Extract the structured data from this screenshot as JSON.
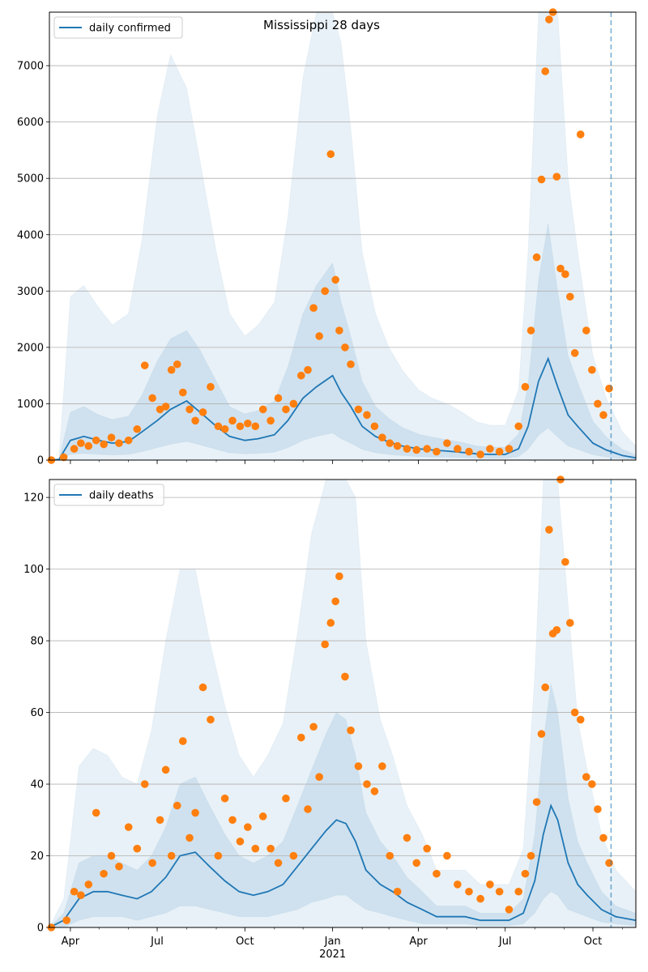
{
  "chart_data": [
    {
      "type": "line",
      "title": "Mississippi 28 days",
      "xlabel": "",
      "ylabel": "",
      "ylim": [
        0,
        7950
      ],
      "yticks": [
        0,
        1000,
        2000,
        3000,
        4000,
        5000,
        6000,
        7000
      ],
      "xlim": [
        "2020-03-10",
        "2021-11-15"
      ],
      "xticks": [
        {
          "date": "2020-04-01",
          "label": "Apr"
        },
        {
          "date": "2020-07-01",
          "label": "Jul"
        },
        {
          "date": "2020-10-01",
          "label": "Oct"
        },
        {
          "date": "2021-01-01",
          "label": "Jan"
        },
        {
          "date": "2021-04-01",
          "label": "Apr"
        },
        {
          "date": "2021-07-01",
          "label": "Jul"
        },
        {
          "date": "2021-10-01",
          "label": "Oct"
        }
      ],
      "forecast_date": "2021-10-20",
      "grid": "horizontal",
      "legend": {
        "position": "top-left",
        "entries": [
          "daily confirmed"
        ]
      },
      "series": [
        {
          "name": "daily confirmed",
          "color": "#1f77b4",
          "x": [
            "2020-03-10",
            "2020-03-20",
            "2020-04-01",
            "2020-04-15",
            "2020-05-01",
            "2020-05-15",
            "2020-06-01",
            "2020-06-15",
            "2020-07-01",
            "2020-07-15",
            "2020-08-01",
            "2020-08-15",
            "2020-09-01",
            "2020-09-15",
            "2020-10-01",
            "2020-10-15",
            "2020-11-01",
            "2020-11-15",
            "2020-12-01",
            "2020-12-15",
            "2021-01-01",
            "2021-01-10",
            "2021-01-20",
            "2021-02-01",
            "2021-02-15",
            "2021-03-01",
            "2021-03-15",
            "2021-04-01",
            "2021-04-15",
            "2021-05-01",
            "2021-05-15",
            "2021-06-01",
            "2021-06-15",
            "2021-07-01",
            "2021-07-15",
            "2021-07-25",
            "2021-08-05",
            "2021-08-15",
            "2021-08-25",
            "2021-09-05",
            "2021-09-15",
            "2021-10-01",
            "2021-10-15",
            "2021-11-01",
            "2021-11-15"
          ],
          "y": [
            0,
            10,
            350,
            420,
            350,
            300,
            330,
            500,
            700,
            900,
            1050,
            850,
            600,
            420,
            350,
            380,
            450,
            700,
            1100,
            1300,
            1500,
            1200,
            950,
            600,
            420,
            320,
            250,
            200,
            180,
            160,
            140,
            110,
            100,
            100,
            200,
            600,
            1400,
            1800,
            1300,
            800,
            600,
            300,
            180,
            80,
            40
          ],
          "lower": [
            0,
            0,
            100,
            120,
            100,
            90,
            100,
            150,
            220,
            280,
            330,
            270,
            190,
            130,
            110,
            120,
            140,
            220,
            350,
            420,
            480,
            380,
            300,
            190,
            130,
            100,
            80,
            60,
            55,
            50,
            45,
            35,
            30,
            30,
            60,
            190,
            440,
            570,
            410,
            250,
            190,
            95,
            55,
            25,
            10
          ],
          "upper": [
            0,
            30,
            2900,
            3100,
            2700,
            2400,
            2600,
            3900,
            6100,
            7200,
            6600,
            5300,
            3700,
            2600,
            2200,
            2400,
            2800,
            4300,
            6800,
            8000,
            8000,
            7400,
            5900,
            3700,
            2600,
            2000,
            1600,
            1250,
            1100,
            1000,
            870,
            680,
            620,
            620,
            1250,
            3700,
            7950,
            7950,
            7950,
            5000,
            3700,
            1850,
            1100,
            500,
            250
          ],
          "mid_upper": [
            0,
            15,
            850,
            950,
            800,
            720,
            780,
            1150,
            1750,
            2150,
            2300,
            1950,
            1400,
            950,
            820,
            880,
            1050,
            1650,
            2600,
            3100,
            3500,
            2800,
            2200,
            1400,
            950,
            740,
            580,
            460,
            410,
            360,
            320,
            250,
            230,
            230,
            460,
            1350,
            3200,
            4200,
            3000,
            1850,
            1380,
            690,
            410,
            190,
            90
          ]
        }
      ],
      "points": {
        "color": "#ff7f0e",
        "x": [
          "2020-03-12",
          "2020-03-25",
          "2020-04-05",
          "2020-04-12",
          "2020-04-20",
          "2020-04-28",
          "2020-05-06",
          "2020-05-14",
          "2020-05-22",
          "2020-06-01",
          "2020-06-10",
          "2020-06-18",
          "2020-06-26",
          "2020-07-04",
          "2020-07-10",
          "2020-07-16",
          "2020-07-22",
          "2020-07-28",
          "2020-08-04",
          "2020-08-10",
          "2020-08-18",
          "2020-08-26",
          "2020-09-03",
          "2020-09-10",
          "2020-09-18",
          "2020-09-26",
          "2020-10-04",
          "2020-10-12",
          "2020-10-20",
          "2020-10-28",
          "2020-11-05",
          "2020-11-13",
          "2020-11-21",
          "2020-11-29",
          "2020-12-06",
          "2020-12-12",
          "2020-12-18",
          "2020-12-24",
          "2020-12-30",
          "2021-01-04",
          "2021-01-08",
          "2021-01-14",
          "2021-01-20",
          "2021-01-28",
          "2021-02-06",
          "2021-02-14",
          "2021-02-22",
          "2021-03-02",
          "2021-03-10",
          "2021-03-20",
          "2021-03-30",
          "2021-04-10",
          "2021-04-20",
          "2021-05-01",
          "2021-05-12",
          "2021-05-24",
          "2021-06-05",
          "2021-06-15",
          "2021-06-25",
          "2021-07-05",
          "2021-07-15",
          "2021-07-22",
          "2021-07-28",
          "2021-08-03",
          "2021-08-08",
          "2021-08-12",
          "2021-08-16",
          "2021-08-20",
          "2021-08-24",
          "2021-08-28",
          "2021-09-02",
          "2021-09-07",
          "2021-09-12",
          "2021-09-18",
          "2021-09-24",
          "2021-09-30",
          "2021-10-06",
          "2021-10-12",
          "2021-10-18"
        ],
        "y": [
          0,
          50,
          200,
          300,
          250,
          350,
          280,
          400,
          300,
          350,
          550,
          1680,
          1100,
          900,
          950,
          1600,
          1700,
          1200,
          900,
          700,
          850,
          1300,
          600,
          550,
          700,
          600,
          650,
          600,
          900,
          700,
          1100,
          900,
          1000,
          1500,
          1600,
          2700,
          2200,
          3000,
          5430,
          3200,
          2300,
          2000,
          1700,
          900,
          800,
          600,
          400,
          300,
          250,
          200,
          180,
          200,
          150,
          300,
          200,
          150,
          100,
          200,
          150,
          200,
          600,
          1300,
          2300,
          3600,
          4980,
          6900,
          7820,
          7950,
          5030,
          3400,
          3300,
          2900,
          1900,
          5780,
          2300,
          1600,
          1000,
          800,
          1270
        ]
      }
    },
    {
      "type": "line",
      "title": "",
      "xlabel": "2021",
      "ylabel": "",
      "ylim": [
        0,
        125
      ],
      "yticks": [
        0,
        20,
        40,
        60,
        80,
        100,
        120
      ],
      "xlim": [
        "2020-03-10",
        "2021-11-15"
      ],
      "xticks": [
        {
          "date": "2020-04-01",
          "label": "Apr"
        },
        {
          "date": "2020-07-01",
          "label": "Jul"
        },
        {
          "date": "2020-10-01",
          "label": "Oct"
        },
        {
          "date": "2021-01-01",
          "label": "Jan"
        },
        {
          "date": "2021-04-01",
          "label": "Apr"
        },
        {
          "date": "2021-07-01",
          "label": "Jul"
        },
        {
          "date": "2021-10-01",
          "label": "Oct"
        }
      ],
      "year_label": "2021",
      "forecast_date": "2021-10-20",
      "grid": "horizontal",
      "legend": {
        "position": "top-left",
        "entries": [
          "daily deaths"
        ]
      },
      "series": [
        {
          "name": "daily deaths",
          "color": "#1f77b4",
          "x": [
            "2020-03-10",
            "2020-03-25",
            "2020-04-10",
            "2020-04-25",
            "2020-05-10",
            "2020-05-25",
            "2020-06-10",
            "2020-06-25",
            "2020-07-10",
            "2020-07-25",
            "2020-08-10",
            "2020-08-25",
            "2020-09-10",
            "2020-09-25",
            "2020-10-10",
            "2020-10-25",
            "2020-11-10",
            "2020-11-25",
            "2020-12-10",
            "2020-12-25",
            "2021-01-05",
            "2021-01-15",
            "2021-01-25",
            "2021-02-05",
            "2021-02-20",
            "2021-03-05",
            "2021-03-20",
            "2021-04-05",
            "2021-04-20",
            "2021-05-05",
            "2021-05-20",
            "2021-06-05",
            "2021-06-20",
            "2021-07-05",
            "2021-07-20",
            "2021-08-01",
            "2021-08-10",
            "2021-08-18",
            "2021-08-25",
            "2021-09-05",
            "2021-09-15",
            "2021-09-25",
            "2021-10-10",
            "2021-10-25",
            "2021-11-15"
          ],
          "y": [
            0,
            2,
            8,
            10,
            10,
            9,
            8,
            10,
            14,
            20,
            21,
            17,
            13,
            10,
            9,
            10,
            12,
            17,
            22,
            27,
            30,
            29,
            24,
            16,
            12,
            10,
            7,
            5,
            3,
            3,
            3,
            2,
            2,
            2,
            4,
            13,
            26,
            34,
            30,
            18,
            12,
            9,
            5,
            3,
            2
          ],
          "lower": [
            0,
            0,
            2,
            3,
            3,
            3,
            2,
            3,
            4,
            6,
            6,
            5,
            4,
            3,
            3,
            3,
            4,
            5,
            7,
            8,
            9,
            9,
            7,
            5,
            4,
            3,
            2,
            1,
            1,
            1,
            1,
            0.5,
            0.5,
            0.5,
            1,
            4,
            8,
            10,
            9,
            5,
            4,
            3,
            1.5,
            1,
            0.5
          ],
          "upper": [
            0,
            8,
            45,
            50,
            48,
            42,
            40,
            55,
            80,
            100,
            100,
            80,
            62,
            48,
            42,
            48,
            57,
            82,
            110,
            125,
            125,
            125,
            120,
            80,
            58,
            48,
            34,
            26,
            16,
            16,
            16,
            12,
            12,
            12,
            22,
            70,
            125,
            125,
            125,
            90,
            58,
            44,
            26,
            16,
            10
          ],
          "mid_upper": [
            0,
            4,
            18,
            20,
            20,
            18,
            16,
            20,
            28,
            40,
            42,
            34,
            26,
            20,
            18,
            20,
            24,
            34,
            44,
            54,
            60,
            58,
            48,
            32,
            24,
            20,
            14,
            10,
            6,
            6,
            6,
            4,
            4,
            4,
            8,
            26,
            52,
            68,
            60,
            36,
            24,
            18,
            10,
            6,
            4
          ]
        }
      ],
      "points": {
        "color": "#ff7f0e",
        "x": [
          "2020-03-12",
          "2020-03-28",
          "2020-04-05",
          "2020-04-12",
          "2020-04-20",
          "2020-04-28",
          "2020-05-06",
          "2020-05-14",
          "2020-05-22",
          "2020-06-01",
          "2020-06-10",
          "2020-06-18",
          "2020-06-26",
          "2020-07-04",
          "2020-07-10",
          "2020-07-16",
          "2020-07-22",
          "2020-07-28",
          "2020-08-04",
          "2020-08-10",
          "2020-08-18",
          "2020-08-26",
          "2020-09-03",
          "2020-09-10",
          "2020-09-18",
          "2020-09-26",
          "2020-10-04",
          "2020-10-12",
          "2020-10-20",
          "2020-10-28",
          "2020-11-05",
          "2020-11-13",
          "2020-11-21",
          "2020-11-29",
          "2020-12-06",
          "2020-12-12",
          "2020-12-18",
          "2020-12-24",
          "2020-12-30",
          "2021-01-04",
          "2021-01-08",
          "2021-01-14",
          "2021-01-20",
          "2021-01-28",
          "2021-02-06",
          "2021-02-14",
          "2021-02-22",
          "2021-03-02",
          "2021-03-10",
          "2021-03-20",
          "2021-03-30",
          "2021-04-10",
          "2021-04-20",
          "2021-05-01",
          "2021-05-12",
          "2021-05-24",
          "2021-06-05",
          "2021-06-15",
          "2021-06-25",
          "2021-07-05",
          "2021-07-15",
          "2021-07-22",
          "2021-07-28",
          "2021-08-03",
          "2021-08-08",
          "2021-08-12",
          "2021-08-16",
          "2021-08-20",
          "2021-08-24",
          "2021-08-28",
          "2021-09-02",
          "2021-09-07",
          "2021-09-12",
          "2021-09-18",
          "2021-09-24",
          "2021-09-30",
          "2021-10-06",
          "2021-10-12",
          "2021-10-18"
        ],
        "y": [
          0,
          2,
          10,
          9,
          12,
          32,
          15,
          20,
          17,
          28,
          22,
          40,
          18,
          30,
          44,
          20,
          34,
          52,
          25,
          32,
          67,
          58,
          20,
          36,
          30,
          24,
          28,
          22,
          31,
          22,
          18,
          36,
          20,
          53,
          33,
          56,
          42,
          79,
          85,
          91,
          98,
          70,
          55,
          45,
          40,
          38,
          45,
          20,
          10,
          25,
          18,
          22,
          15,
          20,
          12,
          10,
          8,
          12,
          10,
          5,
          10,
          15,
          20,
          35,
          54,
          67,
          111,
          82,
          83,
          125,
          102,
          85,
          60,
          58,
          42,
          40,
          33,
          25,
          18
        ]
      }
    }
  ]
}
